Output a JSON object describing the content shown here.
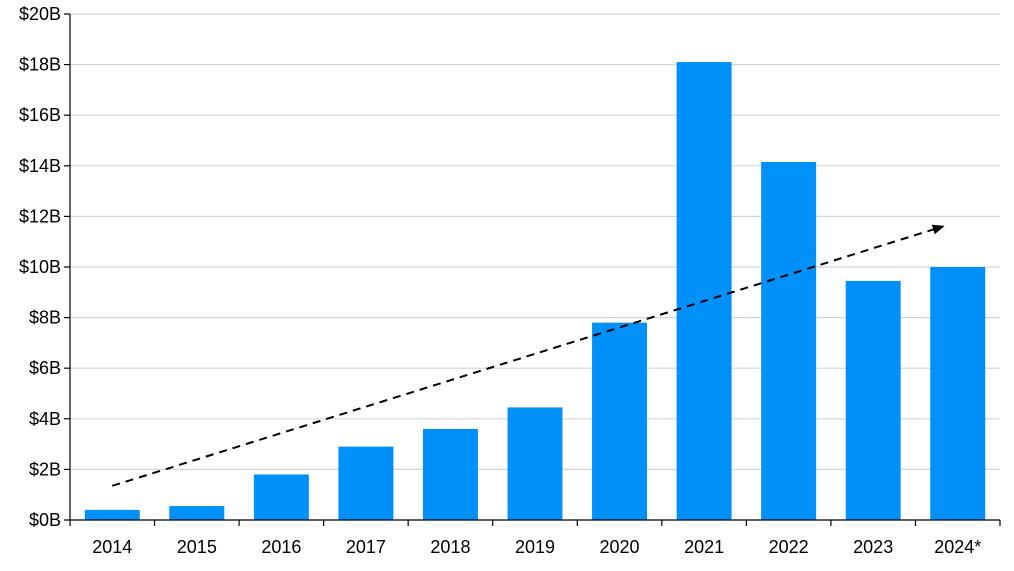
{
  "chart_data": {
    "type": "bar",
    "categories": [
      "2014",
      "2015",
      "2016",
      "2017",
      "2018",
      "2019",
      "2020",
      "2021",
      "2022",
      "2023",
      "2024*"
    ],
    "values": [
      0.4,
      0.55,
      1.8,
      2.9,
      3.6,
      4.45,
      7.8,
      18.1,
      14.15,
      9.45,
      10.0
    ],
    "title": "",
    "xlabel": "",
    "ylabel": "",
    "ylim": [
      0,
      20
    ],
    "yticks": [
      0,
      2,
      4,
      6,
      8,
      10,
      12,
      14,
      16,
      18,
      20
    ],
    "ytick_labels": [
      "$0B",
      "$2B",
      "$4B",
      "$6B",
      "$8B",
      "$10B",
      "$12B",
      "$14B",
      "$16B",
      "$18B",
      "$20B"
    ],
    "grid": true,
    "legend": "none",
    "bar_color": "#0090FA",
    "trend_arrow": {
      "style": "dashed",
      "color": "#000000",
      "start": {
        "category": "2014",
        "value": 1.35
      },
      "end": {
        "category": "2024*",
        "value": 11.6
      }
    }
  }
}
